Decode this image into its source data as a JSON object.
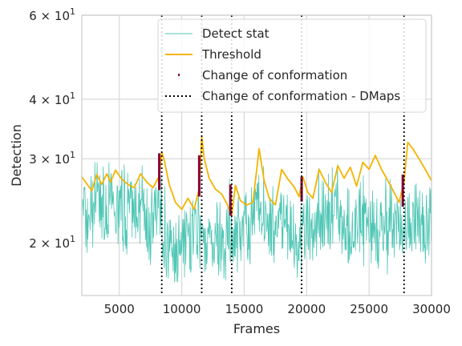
{
  "chart_data": {
    "type": "line",
    "xlabel": "Frames",
    "ylabel": "Detection",
    "xlim": [
      2000,
      30000
    ],
    "ylim": [
      15.5,
      60
    ],
    "yscale": "log",
    "grid": true,
    "xticks": [
      5000,
      10000,
      15000,
      20000,
      25000,
      30000
    ],
    "xtick_labels": [
      "5000",
      "10000",
      "15000",
      "20000",
      "25000",
      "30000"
    ],
    "yticks": [
      {
        "value": 20,
        "mantissa": "2",
        "base": "10",
        "exp": "1"
      },
      {
        "value": 30,
        "mantissa": "3",
        "base": "10",
        "exp": "1"
      },
      {
        "value": 40,
        "mantissa": "4",
        "base": "10",
        "exp": "1"
      },
      {
        "value": 60,
        "mantissa": "6",
        "base": "10",
        "exp": "1"
      }
    ],
    "legend_position": "top-right",
    "legend": [
      "Detect stat",
      "Threshold",
      "Change of conformation",
      "Change of conformation - DMaps"
    ],
    "colors": {
      "detect": "#4fc6b5",
      "threshold": "#f4b400",
      "change": "#8b0036",
      "dmaps": "#000000",
      "grid": "#d9d9d9",
      "frame": "#cccccc"
    },
    "detect_anchors": {
      "x": [
        2000,
        2500,
        3000,
        3500,
        4000,
        4500,
        5000,
        5500,
        6000,
        6500,
        7000,
        7500,
        8000,
        8500,
        9000,
        9500,
        10000,
        10500,
        11000,
        11500,
        12000,
        12500,
        13000,
        13500,
        14000,
        14500,
        15000,
        15500,
        16000,
        16500,
        17000,
        17500,
        18000,
        18500,
        19000,
        19500,
        20000,
        20500,
        21000,
        21500,
        22000,
        22500,
        23000,
        23500,
        24000,
        24500,
        25000,
        25500,
        26000,
        26500,
        27000,
        27500,
        28000,
        28500,
        29000,
        29500,
        30000
      ],
      "y": [
        23,
        22,
        24,
        24,
        25,
        23,
        24,
        23,
        24,
        23,
        23,
        22,
        25,
        21,
        20,
        19,
        21,
        20,
        22,
        21,
        20,
        19,
        21,
        20,
        22,
        21,
        22,
        21,
        24,
        23,
        22,
        21,
        23,
        22,
        21,
        20,
        22,
        22,
        23,
        22,
        23,
        23,
        22,
        21,
        23,
        22,
        22,
        21,
        22,
        21,
        22,
        22,
        23,
        22,
        23,
        22,
        23
      ]
    },
    "threshold": {
      "x": [
        2000,
        2300,
        2800,
        3200,
        3600,
        4000,
        4300,
        4700,
        5200,
        5700,
        6200,
        6700,
        7200,
        7700,
        8200,
        8400,
        8600,
        9000,
        9500,
        10000,
        10500,
        11000,
        11400,
        11600,
        11800,
        12200,
        12700,
        13200,
        13600,
        14000,
        14300,
        14700,
        15200,
        15700,
        16200,
        16600,
        17000,
        17500,
        18000,
        18500,
        19000,
        19400,
        19700,
        20100,
        20500,
        21000,
        21500,
        22000,
        22500,
        23000,
        23500,
        24000,
        24500,
        25000,
        25500,
        26000,
        26500,
        27000,
        27400,
        27800,
        28100,
        28500,
        29000,
        29500,
        30000
      ],
      "y": [
        27.5,
        26.8,
        25.7,
        27.8,
        26.5,
        27.9,
        26.8,
        28.4,
        27.2,
        26.5,
        26.1,
        27.9,
        26.8,
        26.1,
        27.6,
        31.0,
        29.8,
        26.5,
        24.3,
        23.5,
        24.8,
        23.5,
        26.0,
        33.5,
        30.0,
        27.3,
        25.9,
        25.3,
        24.2,
        22.8,
        26.4,
        24.5,
        24.0,
        24.3,
        31.5,
        27.0,
        24.8,
        24.0,
        28.5,
        27.2,
        26.2,
        25.0,
        27.5,
        25.5,
        24.8,
        28.5,
        26.8,
        25.5,
        29.0,
        27.3,
        28.8,
        26.3,
        29.5,
        28.5,
        30.5,
        28.5,
        27.0,
        25.5,
        24.3,
        26.8,
        32.5,
        31.5,
        30.0,
        28.5,
        27.0
      ]
    },
    "change_segments": [
      {
        "x": 8200,
        "y0": 25.8,
        "y1": 30.8
      },
      {
        "x": 11400,
        "y0": 25.0,
        "y1": 30.5
      },
      {
        "x": 13900,
        "y0": 22.8,
        "y1": 26.5
      },
      {
        "x": 19600,
        "y0": 24.4,
        "y1": 27.5
      },
      {
        "x": 27700,
        "y0": 23.8,
        "y1": 27.8
      }
    ],
    "dmaps_lines": [
      8400,
      11600,
      14000,
      19600,
      27800
    ]
  }
}
